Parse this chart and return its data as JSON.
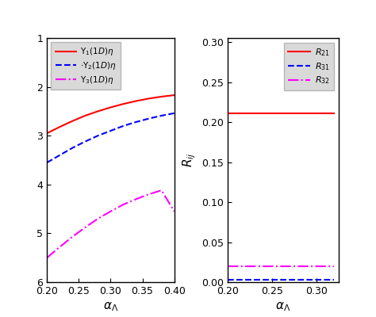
{
  "left": {
    "xlabel": "$\\alpha_{\\Lambda}$",
    "xlim": [
      0.2,
      0.4
    ],
    "ylim": [
      1.0,
      6.0
    ],
    "yticks": [
      1,
      2,
      3,
      4,
      5,
      6
    ],
    "xticks": [
      0.2,
      0.25,
      0.3,
      0.35,
      0.4
    ],
    "lines": [
      {
        "label": "$\\Upsilon_1(1D)\\eta$",
        "color": "red",
        "linestyle": "solid",
        "x": [
          0.2,
          0.22,
          0.24,
          0.26,
          0.28,
          0.3,
          0.32,
          0.34,
          0.36,
          0.38,
          0.4
        ],
        "y": [
          2.95,
          2.82,
          2.7,
          2.59,
          2.5,
          2.42,
          2.35,
          2.29,
          2.24,
          2.2,
          2.17
        ]
      },
      {
        "label": "$\\cdot\\Upsilon_2(1D)\\eta$",
        "color": "blue",
        "linestyle": "dashed",
        "x": [
          0.2,
          0.22,
          0.24,
          0.26,
          0.28,
          0.3,
          0.32,
          0.34,
          0.36,
          0.38,
          0.4
        ],
        "y": [
          3.55,
          3.4,
          3.25,
          3.12,
          3.0,
          2.9,
          2.8,
          2.72,
          2.65,
          2.59,
          2.54
        ]
      },
      {
        "label": "$\\Upsilon_3(1D)\\eta$",
        "color": "magenta",
        "linestyle": "dashdot",
        "x": [
          0.2,
          0.22,
          0.24,
          0.26,
          0.28,
          0.3,
          0.32,
          0.34,
          0.36,
          0.38,
          0.4
        ],
        "y": [
          5.5,
          5.28,
          5.07,
          4.88,
          4.7,
          4.55,
          4.41,
          4.3,
          4.2,
          4.12,
          4.55
        ]
      }
    ],
    "legend_labels": [
      "$\\Upsilon_1(1D)\\eta$",
      "$\\cdot\\Upsilon_2(1D)\\eta$",
      "$\\Upsilon_3(1D)\\eta$"
    ],
    "legend_colors": [
      "red",
      "blue",
      "magenta"
    ],
    "legend_linestyles": [
      "solid",
      "dashed",
      "dashdot"
    ]
  },
  "right": {
    "xlabel": "$\\alpha_{\\Lambda}$",
    "ylabel": "$R_{ij}$",
    "xlim": [
      0.2,
      0.325
    ],
    "ylim": [
      0.0,
      0.305
    ],
    "yticks": [
      0.0,
      0.05,
      0.1,
      0.15,
      0.2,
      0.25,
      0.3
    ],
    "xticks": [
      0.2,
      0.25,
      0.3
    ],
    "lines": [
      {
        "label": "$R_{21}$",
        "color": "red",
        "linestyle": "solid",
        "x": [
          0.2,
          0.22,
          0.24,
          0.26,
          0.28,
          0.3,
          0.32
        ],
        "y": [
          0.2105,
          0.2105,
          0.2105,
          0.2105,
          0.2105,
          0.2105,
          0.2105
        ]
      },
      {
        "label": "$R_{31}$",
        "color": "blue",
        "linestyle": "dashed",
        "x": [
          0.2,
          0.22,
          0.24,
          0.26,
          0.28,
          0.3,
          0.32
        ],
        "y": [
          0.003,
          0.003,
          0.003,
          0.003,
          0.003,
          0.003,
          0.003
        ]
      },
      {
        "label": "$R_{32}$",
        "color": "magenta",
        "linestyle": "dashdot",
        "x": [
          0.2,
          0.22,
          0.24,
          0.26,
          0.28,
          0.3,
          0.32
        ],
        "y": [
          0.02,
          0.02,
          0.02,
          0.02,
          0.02,
          0.02,
          0.02
        ]
      }
    ],
    "legend_labels": [
      "$R_{21}$",
      "$R_{31}$",
      "$R_{32}$"
    ],
    "legend_colors": [
      "red",
      "blue",
      "magenta"
    ],
    "legend_linestyles": [
      "solid",
      "dashed",
      "dashdot"
    ]
  },
  "bg_color": "#e8e8e8",
  "fig_width": 4.74,
  "fig_height": 4.0
}
